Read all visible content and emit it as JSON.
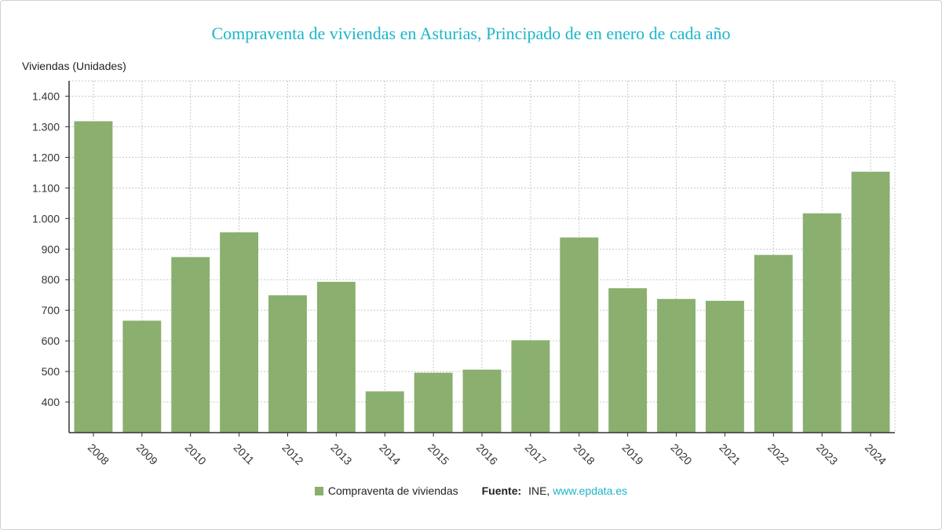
{
  "chart_data": {
    "type": "bar",
    "title": "Compraventa de viviendas en Asturias, Principado de en enero de cada año",
    "ylabel": "Viviendas (Unidades)",
    "xlabel": "",
    "categories": [
      "2008",
      "2009",
      "2010",
      "2011",
      "2012",
      "2013",
      "2014",
      "2015",
      "2016",
      "2017",
      "2018",
      "2019",
      "2020",
      "2021",
      "2022",
      "2023",
      "2024"
    ],
    "series": [
      {
        "name": "Compraventa de viviendas",
        "color": "#8aaf6e",
        "values": [
          1318,
          666,
          874,
          955,
          749,
          793,
          435,
          496,
          506,
          602,
          938,
          772,
          737,
          731,
          881,
          1017,
          1153
        ]
      }
    ],
    "ylim": [
      300,
      1450
    ],
    "yticks": [
      400,
      500,
      600,
      700,
      800,
      900,
      1000,
      1100,
      1200,
      1300,
      1400
    ],
    "ytick_labels": [
      "400",
      "500",
      "600",
      "700",
      "800",
      "900",
      "1.000",
      "1.100",
      "1.200",
      "1.300",
      "1.400"
    ],
    "grid": true,
    "legend_position": "bottom"
  },
  "source": {
    "label": "Fuente:",
    "text": "INE,",
    "link": "www.epdata.es"
  }
}
